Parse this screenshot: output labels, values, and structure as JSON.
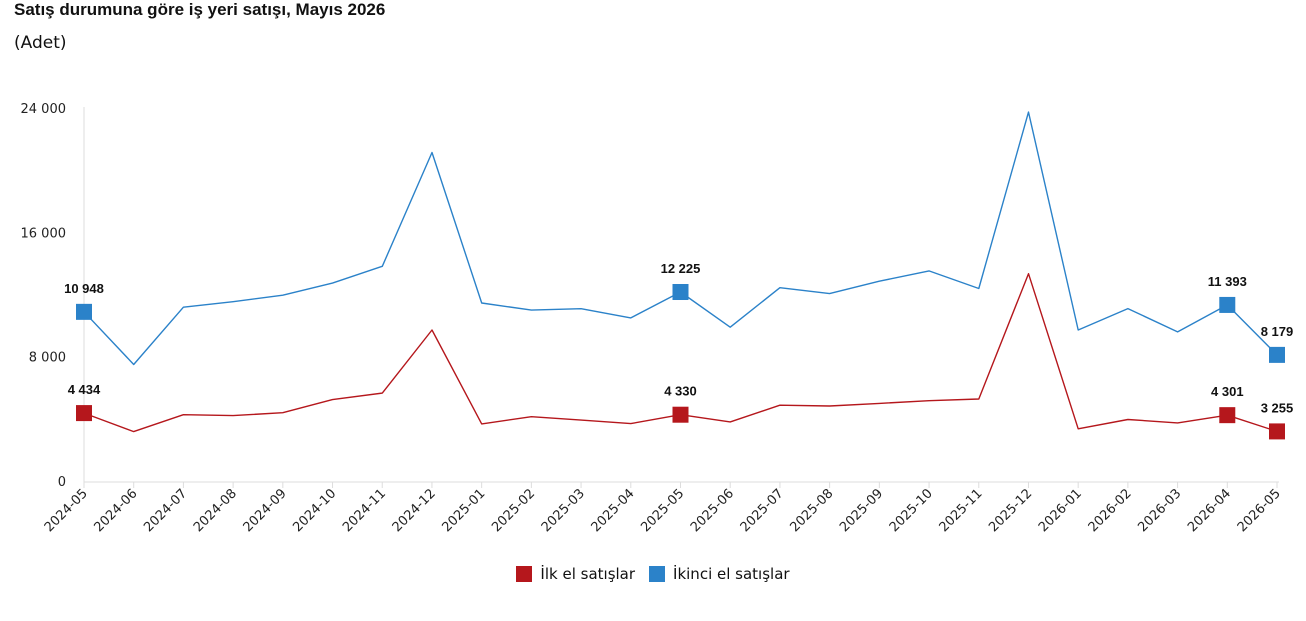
{
  "title": "Satış durumuna göre iş yeri satışı, Mayıs 2026",
  "subtitle": "(Adet)",
  "colors": {
    "ilk": "#b5171c",
    "ikinci": "#2b82c9",
    "axis": "#dddddd"
  },
  "chart_data": {
    "type": "line",
    "categories": [
      "2024-05",
      "2024-06",
      "2024-07",
      "2024-08",
      "2024-09",
      "2024-10",
      "2024-11",
      "2024-12",
      "2025-01",
      "2025-02",
      "2025-03",
      "2025-04",
      "2025-05",
      "2025-06",
      "2025-07",
      "2025-08",
      "2025-09",
      "2025-10",
      "2025-11",
      "2025-12",
      "2026-01",
      "2026-02",
      "2026-03",
      "2026-04",
      "2026-05"
    ],
    "ylim": [
      0,
      24000
    ],
    "yticks": [
      0,
      8000,
      16000,
      24000
    ],
    "ytick_labels": [
      "0",
      "8 000",
      "16 000",
      "24 000"
    ],
    "series": [
      {
        "name": "İlk el satışlar",
        "color": "#b5171c",
        "values": [
          4434,
          3240,
          4330,
          4270,
          4460,
          5300,
          5720,
          9780,
          3740,
          4200,
          3980,
          3760,
          4330,
          3870,
          4940,
          4890,
          5060,
          5230,
          5340,
          13400,
          3420,
          4020,
          3800,
          4301,
          3255
        ],
        "labeled": [
          0,
          12,
          23,
          24
        ],
        "labels": [
          "4 434",
          "4 330",
          "4 301",
          "3 255"
        ]
      },
      {
        "name": "İkinci el satışlar",
        "color": "#2b82c9",
        "values": [
          10948,
          7560,
          11250,
          11600,
          12020,
          12800,
          13880,
          21200,
          11520,
          11060,
          11150,
          10560,
          12225,
          9960,
          12500,
          12120,
          12920,
          13580,
          12450,
          23800,
          9780,
          11160,
          9660,
          11393,
          8179
        ],
        "labeled": [
          0,
          12,
          23,
          24
        ],
        "labels": [
          "10 948",
          "12 225",
          "11 393",
          "8 179"
        ]
      }
    ],
    "legend_position": "bottom",
    "grid": false
  }
}
